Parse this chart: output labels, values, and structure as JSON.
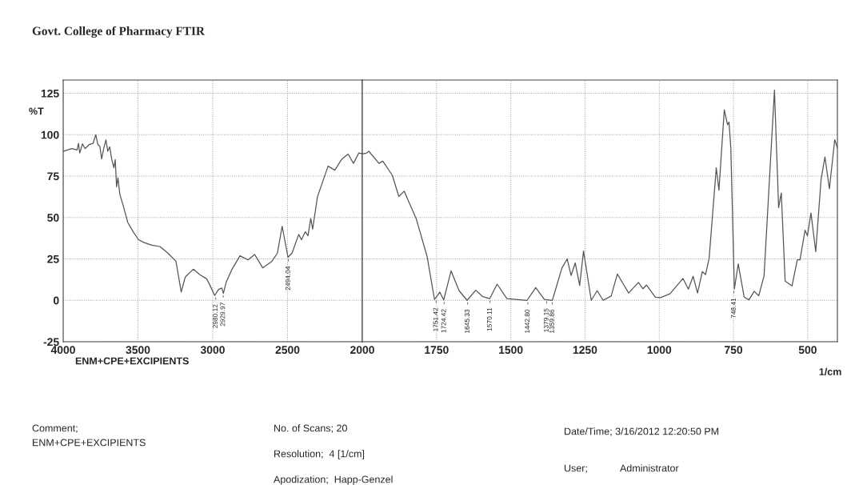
{
  "chart_data": [
    {
      "type": "line",
      "title": "Govt. College of Pharmacy FTIR",
      "ylabel": "%T",
      "xlim": [
        4000,
        2000
      ],
      "ylim": [
        -25,
        133
      ],
      "xticks": [
        4000,
        3500,
        3000,
        2500,
        2000
      ],
      "yticks": [
        -25,
        0,
        25,
        50,
        75,
        100,
        125
      ],
      "grid": true,
      "series": [
        {
          "color": "#555555",
          "x": [
            4000,
            3943,
            3907,
            3898,
            3889,
            3871,
            3854,
            3827,
            3800,
            3782,
            3768,
            3755,
            3743,
            3729,
            3714,
            3702,
            3689,
            3675,
            3661,
            3652,
            3643,
            3634,
            3621,
            3595,
            3568,
            3532,
            3496,
            3461,
            3407,
            3354,
            3300,
            3246,
            3211,
            3184,
            3130,
            3086,
            3041,
            3018,
            2987,
            2961,
            2939,
            2929,
            2911,
            2871,
            2818,
            2764,
            2720,
            2666,
            2604,
            2568,
            2536,
            2497,
            2470,
            2425,
            2407,
            2381,
            2363,
            2345,
            2332,
            2300,
            2229,
            2184,
            2139,
            2095,
            2059,
            2023,
            2000
          ],
          "values": [
            89.9,
            91.6,
            90.8,
            94.8,
            89,
            94.5,
            91.6,
            94,
            94.8,
            100,
            94,
            93,
            85.4,
            91.6,
            96.8,
            90,
            92.7,
            85,
            80,
            85,
            68.6,
            74,
            64,
            56,
            47,
            41.4,
            36.6,
            35,
            33.3,
            32.5,
            28.5,
            23.6,
            5,
            14,
            18.8,
            15.5,
            13,
            9,
            2.9,
            6.6,
            7.4,
            4.2,
            10.7,
            18.8,
            26.9,
            24.4,
            27.7,
            19.6,
            23.6,
            28.5,
            44.7,
            26,
            28.5,
            39.8,
            36.6,
            41.4,
            39,
            49.5,
            43,
            62.5,
            81,
            78.6,
            85,
            88.3,
            82.7,
            89,
            88.5
          ]
        }
      ],
      "annotations": [
        {
          "text": "2980.12",
          "x": 2980.12,
          "y": 3
        },
        {
          "text": "2929.97",
          "x": 2929.97,
          "y": 4.2
        },
        {
          "text": "2494.04",
          "x": 2494.04,
          "y": 26
        },
        "ENM+CPE+EXCIPIENTS",
        "Comment;",
        "ENM+CPE+EXCIPIENTS",
        "No. of Scans; 20",
        "Resolution;  4 [1/cm]",
        "Apodization;  Happ-Genzel",
        "Date/Time; 3/16/2012 12:20:50 PM",
        "User;",
        "Administrator"
      ]
    },
    {
      "type": "line",
      "xlabel": "1/cm",
      "xlim": [
        2000,
        400
      ],
      "ylim": [
        -25,
        133
      ],
      "xticks": [
        1750,
        1500,
        1250,
        1000,
        750,
        500
      ],
      "yticks": [
        -25,
        0,
        25,
        50,
        75,
        100,
        125
      ],
      "tick_labels": "x",
      "grid": true,
      "series": [
        {
          "color": "#555555",
          "x": [
            2000,
            1988,
            1978,
            1944,
            1931,
            1899,
            1877,
            1859,
            1818,
            1782,
            1757,
            1748,
            1739,
            1726,
            1701,
            1674,
            1647,
            1618,
            1594,
            1571,
            1546,
            1513,
            1445,
            1416,
            1387,
            1360,
            1328,
            1310,
            1297,
            1283,
            1268,
            1255,
            1229,
            1209,
            1189,
            1162,
            1141,
            1121,
            1103,
            1070,
            1055,
            1043,
            1013,
            996,
            964,
            920,
            902,
            886,
            871,
            855,
            844,
            832,
            808,
            799,
            781,
            770,
            765,
            759,
            747,
            734,
            714,
            698,
            680,
            665,
            647,
            612,
            598,
            589,
            576,
            553,
            535,
            526,
            509,
            501,
            489,
            473,
            455,
            442,
            427,
            409,
            400
          ],
          "values": [
            88.5,
            88.7,
            90,
            82.7,
            84,
            75.5,
            62.7,
            65.9,
            49,
            26.6,
            0.6,
            2.6,
            5,
            0.2,
            17.8,
            5.8,
            0,
            6.1,
            2.2,
            1,
            9.8,
            1,
            0,
            7.7,
            0.6,
            0,
            19.4,
            25,
            15,
            22.6,
            9,
            29.8,
            0,
            5.8,
            0,
            2.6,
            15.9,
            9.8,
            4.4,
            10.8,
            7,
            9.2,
            1.9,
            1.6,
            3.9,
            13.2,
            6.8,
            14.5,
            4.4,
            17.3,
            15.6,
            25.3,
            80,
            66.5,
            115,
            106,
            107.6,
            92,
            6.8,
            22,
            1.9,
            0.3,
            5.5,
            2.7,
            14.8,
            127,
            56,
            64.8,
            11.6,
            8.7,
            24.5,
            24.5,
            42.3,
            39,
            52.7,
            29.4,
            73,
            86.6,
            67.3,
            97,
            92
          ]
        }
      ],
      "annotations": [
        {
          "text": "1751.42",
          "x": 1751.42,
          "y": 1
        },
        {
          "text": "1724.42",
          "x": 1724.42,
          "y": 0.2
        },
        {
          "text": "1645.33",
          "x": 1645.33,
          "y": 0
        },
        {
          "text": "1570.11",
          "x": 1570.11,
          "y": 1
        },
        {
          "text": "1442.80",
          "x": 1442.8,
          "y": 0
        },
        {
          "text": "1379.15",
          "x": 1379.15,
          "y": 0.6
        },
        {
          "text": "1359.86",
          "x": 1359.86,
          "y": 0
        },
        {
          "text": "748.41",
          "x": 748.41,
          "y": 6.8
        }
      ]
    }
  ]
}
